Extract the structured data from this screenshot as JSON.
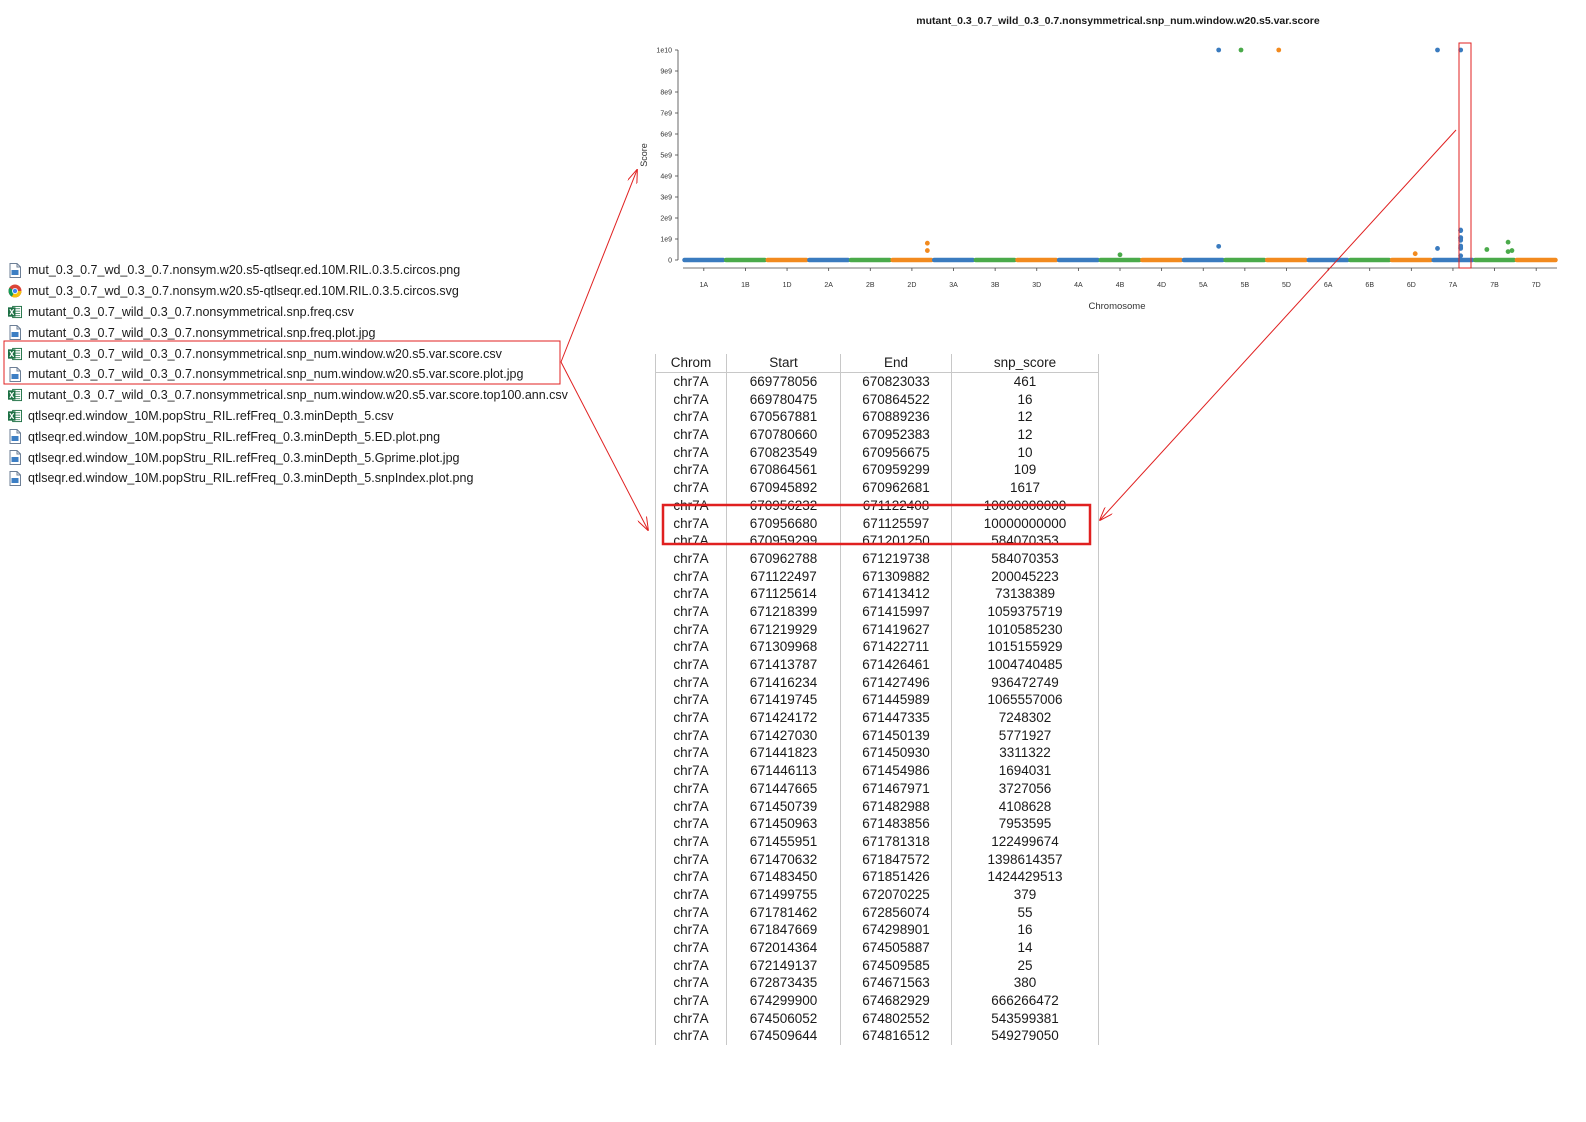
{
  "files": [
    {
      "name": "mut_0.3_0.7_wd_0.3_0.7.nonsym.w20.s5-qtlseqr.ed.10M.RIL.0.3.5.circos.png",
      "icon": "image-file-icon"
    },
    {
      "name": "mut_0.3_0.7_wd_0.3_0.7.nonsym.w20.s5-qtlseqr.ed.10M.RIL.0.3.5.circos.svg",
      "icon": "chrome-icon"
    },
    {
      "name": "mutant_0.3_0.7_wild_0.3_0.7.nonsymmetrical.snp.freq.csv",
      "icon": "excel-icon"
    },
    {
      "name": "mutant_0.3_0.7_wild_0.3_0.7.nonsymmetrical.snp.freq.plot.jpg",
      "icon": "image-file-icon"
    },
    {
      "name": "mutant_0.3_0.7_wild_0.3_0.7.nonsymmetrical.snp_num.window.w20.s5.var.score.csv",
      "icon": "excel-icon"
    },
    {
      "name": "mutant_0.3_0.7_wild_0.3_0.7.nonsymmetrical.snp_num.window.w20.s5.var.score.plot.jpg",
      "icon": "image-file-icon"
    },
    {
      "name": "mutant_0.3_0.7_wild_0.3_0.7.nonsymmetrical.snp_num.window.w20.s5.var.score.top100.ann.csv",
      "icon": "excel-icon"
    },
    {
      "name": "qtlseqr.ed.window_10M.popStru_RIL.refFreq_0.3.minDepth_5.csv",
      "icon": "excel-icon"
    },
    {
      "name": "qtlseqr.ed.window_10M.popStru_RIL.refFreq_0.3.minDepth_5.ED.plot.png",
      "icon": "image-file-icon"
    },
    {
      "name": "qtlseqr.ed.window_10M.popStru_RIL.refFreq_0.3.minDepth_5.Gprime.plot.jpg",
      "icon": "image-file-icon"
    },
    {
      "name": "qtlseqr.ed.window_10M.popStru_RIL.refFreq_0.3.minDepth_5.snpIndex.plot.png",
      "icon": "image-file-icon"
    }
  ],
  "colors": {
    "blue": "#3a7bbf",
    "green": "#4aaa4a",
    "orange": "#f28a1e",
    "highlight": "#e02020"
  },
  "chart_data": {
    "type": "scatter",
    "title": "mutant_0.3_0.7_wild_0.3_0.7.nonsymmetrical.snp_num.window.w20.s5.var.score",
    "xlabel": "Chromosome",
    "ylabel": "Score",
    "ylim": [
      0,
      10000000000
    ],
    "yticks": [
      "0",
      "1e9",
      "2e9",
      "3e9",
      "4e9",
      "5e9",
      "6e9",
      "7e9",
      "8e9",
      "9e9",
      "1e10"
    ],
    "categories": [
      "1A",
      "1B",
      "1D",
      "2A",
      "2B",
      "2D",
      "3A",
      "3B",
      "3D",
      "4A",
      "4B",
      "4D",
      "5A",
      "5B",
      "5D",
      "6A",
      "6B",
      "6D",
      "7A",
      "7B",
      "7D"
    ],
    "category_colors": [
      "blue",
      "green",
      "orange",
      "blue",
      "green",
      "orange",
      "blue",
      "green",
      "orange",
      "blue",
      "green",
      "orange",
      "blue",
      "green",
      "orange",
      "blue",
      "green",
      "orange",
      "blue",
      "green",
      "orange"
    ],
    "baseline": 0,
    "outliers": [
      {
        "chrom": "2D",
        "pos": 0.9,
        "value": 800000000
      },
      {
        "chrom": "2D",
        "pos": 0.9,
        "value": 450000000
      },
      {
        "chrom": "4B",
        "pos": 0.5,
        "value": 250000000
      },
      {
        "chrom": "5A",
        "pos": 0.9,
        "value": 10000000000
      },
      {
        "chrom": "5A",
        "pos": 0.9,
        "value": 650000000
      },
      {
        "chrom": "5B",
        "pos": 0.4,
        "value": 10000000000
      },
      {
        "chrom": "5D",
        "pos": 0.3,
        "value": 10000000000
      },
      {
        "chrom": "6D",
        "pos": 0.6,
        "value": 300000000
      },
      {
        "chrom": "7A",
        "pos": 0.1,
        "value": 10000000000
      },
      {
        "chrom": "7A",
        "pos": 0.1,
        "value": 550000000
      },
      {
        "chrom": "7A",
        "pos": 0.7,
        "value": 10000000000
      },
      {
        "chrom": "7A",
        "pos": 0.7,
        "value": 1424429513
      },
      {
        "chrom": "7A",
        "pos": 0.7,
        "value": 1398614357
      },
      {
        "chrom": "7A",
        "pos": 0.7,
        "value": 1065557006
      },
      {
        "chrom": "7A",
        "pos": 0.7,
        "value": 1059375719
      },
      {
        "chrom": "7A",
        "pos": 0.7,
        "value": 1010585230
      },
      {
        "chrom": "7A",
        "pos": 0.7,
        "value": 936472749
      },
      {
        "chrom": "7A",
        "pos": 0.7,
        "value": 666266472
      },
      {
        "chrom": "7A",
        "pos": 0.7,
        "value": 584070353
      },
      {
        "chrom": "7A",
        "pos": 0.7,
        "value": 549279050
      },
      {
        "chrom": "7A",
        "pos": 0.7,
        "value": 200045223
      },
      {
        "chrom": "7B",
        "pos": 0.3,
        "value": 500000000
      },
      {
        "chrom": "7B",
        "pos": 0.85,
        "value": 850000000
      },
      {
        "chrom": "7B",
        "pos": 0.85,
        "value": 400000000
      },
      {
        "chrom": "7B",
        "pos": 0.95,
        "value": 450000000
      }
    ]
  },
  "table": {
    "headers": [
      "Chrom",
      "Start",
      "End",
      "snp_score"
    ],
    "rows": [
      [
        "chr7A",
        "669778056",
        "670823033",
        "461"
      ],
      [
        "chr7A",
        "669780475",
        "670864522",
        "16"
      ],
      [
        "chr7A",
        "670567881",
        "670889236",
        "12"
      ],
      [
        "chr7A",
        "670780660",
        "670952383",
        "12"
      ],
      [
        "chr7A",
        "670823549",
        "670956675",
        "10"
      ],
      [
        "chr7A",
        "670864561",
        "670959299",
        "109"
      ],
      [
        "chr7A",
        "670945892",
        "670962681",
        "1617"
      ],
      [
        "chr7A",
        "670956232",
        "671122408",
        "10000000000"
      ],
      [
        "chr7A",
        "670956680",
        "671125597",
        "10000000000"
      ],
      [
        "chr7A",
        "670959299",
        "671201250",
        "584070353"
      ],
      [
        "chr7A",
        "670962788",
        "671219738",
        "584070353"
      ],
      [
        "chr7A",
        "671122497",
        "671309882",
        "200045223"
      ],
      [
        "chr7A",
        "671125614",
        "671413412",
        "73138389"
      ],
      [
        "chr7A",
        "671218399",
        "671415997",
        "1059375719"
      ],
      [
        "chr7A",
        "671219929",
        "671419627",
        "1010585230"
      ],
      [
        "chr7A",
        "671309968",
        "671422711",
        "1015155929"
      ],
      [
        "chr7A",
        "671413787",
        "671426461",
        "1004740485"
      ],
      [
        "chr7A",
        "671416234",
        "671427496",
        "936472749"
      ],
      [
        "chr7A",
        "671419745",
        "671445989",
        "1065557006"
      ],
      [
        "chr7A",
        "671424172",
        "671447335",
        "7248302"
      ],
      [
        "chr7A",
        "671427030",
        "671450139",
        "5771927"
      ],
      [
        "chr7A",
        "671441823",
        "671450930",
        "3311322"
      ],
      [
        "chr7A",
        "671446113",
        "671454986",
        "1694031"
      ],
      [
        "chr7A",
        "671447665",
        "671467971",
        "3727056"
      ],
      [
        "chr7A",
        "671450739",
        "671482988",
        "4108628"
      ],
      [
        "chr7A",
        "671450963",
        "671483856",
        "7953595"
      ],
      [
        "chr7A",
        "671455951",
        "671781318",
        "122499674"
      ],
      [
        "chr7A",
        "671470632",
        "671847572",
        "1398614357"
      ],
      [
        "chr7A",
        "671483450",
        "671851426",
        "1424429513"
      ],
      [
        "chr7A",
        "671499755",
        "672070225",
        "379"
      ],
      [
        "chr7A",
        "671781462",
        "672856074",
        "55"
      ],
      [
        "chr7A",
        "671847669",
        "674298901",
        "16"
      ],
      [
        "chr7A",
        "672014364",
        "674505887",
        "14"
      ],
      [
        "chr7A",
        "672149137",
        "674509585",
        "25"
      ],
      [
        "chr7A",
        "672873435",
        "674671563",
        "380"
      ],
      [
        "chr7A",
        "674299900",
        "674682929",
        "666266472"
      ],
      [
        "chr7A",
        "674506052",
        "674802552",
        "543599381"
      ],
      [
        "chr7A",
        "674509644",
        "674816512",
        "549279050"
      ]
    ]
  }
}
